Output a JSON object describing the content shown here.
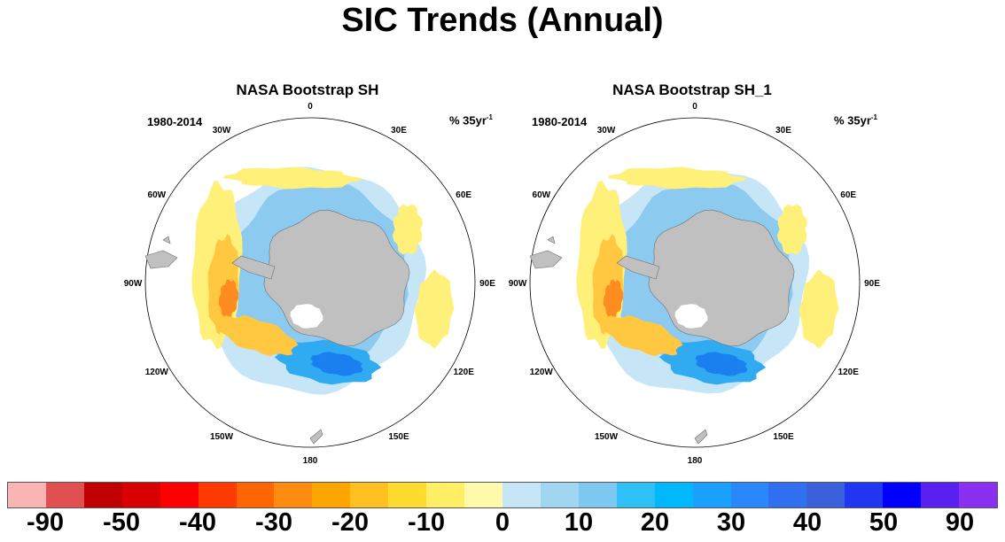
{
  "title": "SIC Trends (Annual)",
  "panels": [
    {
      "title": "NASA Bootstrap SH",
      "period": "1980-2014",
      "units": "% 35yr",
      "units_exp": "-1"
    },
    {
      "title": "NASA Bootstrap SH_1",
      "period": "1980-2014",
      "units": "% 35yr",
      "units_exp": "-1"
    }
  ],
  "longitude_labels": [
    "0",
    "30E",
    "60E",
    "90E",
    "120E",
    "150E",
    "180",
    "150W",
    "120W",
    "90W",
    "60W",
    "30W"
  ],
  "colorbar": {
    "colors": [
      "#fbb4b4",
      "#e05050",
      "#c00000",
      "#d80000",
      "#ff0000",
      "#ff3a00",
      "#ff6600",
      "#ff8c10",
      "#ffa500",
      "#ffc020",
      "#ffdb30",
      "#ffee66",
      "#fffaaa",
      "#c6e6f8",
      "#a0d6f0",
      "#7cc8f0",
      "#30c0f8",
      "#00b8ff",
      "#1aa0ff",
      "#2a88ff",
      "#3070f0",
      "#3a60dc",
      "#2036f0",
      "#0000ff",
      "#5a20f0",
      "#8a30f0"
    ],
    "tick_labels": [
      "-90",
      "-50",
      "-40",
      "-30",
      "-20",
      "-10",
      "0",
      "10",
      "20",
      "30",
      "40",
      "50",
      "90"
    ]
  },
  "map_colors": {
    "land": "#c0c0c0",
    "land_outline": "#707070",
    "decline_light": "#fff07a",
    "decline_mid": "#ffc840",
    "decline_strong": "#ff8c20",
    "decline_peak": "#ff2a00",
    "increase_light": "#c6e6f8",
    "increase_mid": "#8ccaf0",
    "increase_strong": "#30aaf0",
    "increase_peak": "#1a80f0"
  }
}
